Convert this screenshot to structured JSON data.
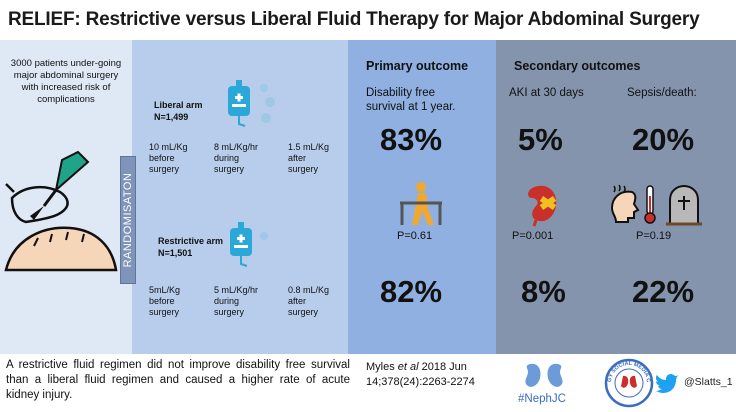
{
  "title": "RELIEF: Restrictive versus Liberal Fluid Therapy for Major Abdominal Surgery",
  "intro_text": "3000 patients under-going major abdominal surgery with increased risk of complications",
  "randomisation_label": "RANDOMISATON",
  "liberal_arm": {
    "name": "Liberal arm",
    "n": "N=1,499",
    "doses": [
      {
        "amount": "10 mL/Kg",
        "timing1": "before",
        "timing2": "surgery"
      },
      {
        "amount": "8 mL/Kg/hr",
        "timing1": "during",
        "timing2": "surgery"
      },
      {
        "amount": "1.5 mL/Kg",
        "timing1": "after",
        "timing2": "surgery"
      }
    ]
  },
  "restrictive_arm": {
    "name": "Restrictive arm",
    "n": "N=1,501",
    "doses": [
      {
        "amount": "5mL/Kg",
        "timing1": "before",
        "timing2": "surgery"
      },
      {
        "amount": "5 mL/Kg/hr",
        "timing1": "during",
        "timing2": "surgery"
      },
      {
        "amount": "0.8 mL/Kg",
        "timing1": "after",
        "timing2": "surgery"
      }
    ]
  },
  "primary_outcome": {
    "heading": "Primary outcome",
    "label_line1": "Disability free",
    "label_line2": "survival at 1 year.",
    "liberal_value": "83%",
    "p_value": "P=0.61",
    "restrictive_value": "82%"
  },
  "secondary_outcomes": {
    "heading": "Secondary outcomes",
    "aki": {
      "label": "AKI at 30 days",
      "liberal_value": "5%",
      "p_value": "P=0.001",
      "restrictive_value": "8%"
    },
    "sepsis": {
      "label": "Sepsis/death:",
      "liberal_value": "20%",
      "p_value": "P=0.19",
      "restrictive_value": "22%"
    }
  },
  "conclusion": "A restrictive fluid regimen did not improve disability free survival than a liberal fluid regimen and caused a higher rate of acute kidney injury.",
  "citation": {
    "author": "Myles ",
    "etal": "et al",
    "rest": " 2018 Jun 14;378(24):2263-2274"
  },
  "hashtag": "#NephJC",
  "badge_text": "NEPHROLOGY SOCIAL MEDIA COLLECTIVE",
  "twitter_handle": "@Slatts_1",
  "colors": {
    "left_panel": "#dfe9f6",
    "mid_panel": "#b7cdeb",
    "primary_panel": "#8fb0e0",
    "secondary_panel": "#8494ac",
    "accent_blue": "#3a6dbf",
    "twitter_blue": "#1da1f2",
    "kidney_red": "#c9302c",
    "figure_orange": "#f0a830"
  }
}
